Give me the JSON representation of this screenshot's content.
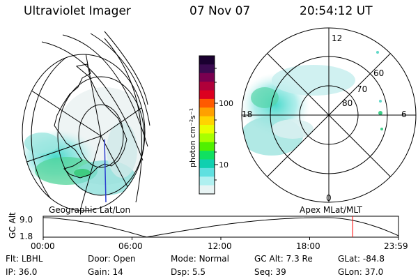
{
  "header": {
    "instrument": "Ultraviolet Imager",
    "date": "07 Nov 07",
    "time": "20:54:12 UT"
  },
  "panels": {
    "geo_caption": "Geographic Lat/Lon",
    "apex_caption": "Apex MLat/MLT"
  },
  "colorbar": {
    "unit_label": "photon cm⁻²s⁻¹",
    "ticks": [
      "100",
      "10"
    ],
    "colors": [
      "#1a0030",
      "#3a0a50",
      "#7a0050",
      "#b0003a",
      "#dc0020",
      "#ff5a00",
      "#ffa000",
      "#ffd400",
      "#e8ff00",
      "#a8ff00",
      "#50f000",
      "#10e060",
      "#10d0b0",
      "#60e0e0",
      "#b0f0f0",
      "#e8f4f4"
    ]
  },
  "polar": {
    "mlt_labels": [
      "12",
      "18",
      "6",
      "0"
    ],
    "mlat_labels": [
      "60",
      "70",
      "80"
    ]
  },
  "timeline": {
    "axis_label": "GC Alt",
    "y_ticks": [
      "9.0",
      "1.8"
    ],
    "x_ticks": [
      "00:00",
      "06:00",
      "12:00",
      "18:00",
      "23:59"
    ],
    "current_time_fraction": 0.8711
  },
  "status": {
    "row1": [
      {
        "key": "Flt:",
        "value": "LBHL"
      },
      {
        "key": "Door:",
        "value": "Open"
      },
      {
        "key": "Mode:",
        "value": "Normal"
      },
      {
        "key": "GC Alt:",
        "value": "7.3 Re"
      },
      {
        "key": "GLat:",
        "value": "-84.8"
      }
    ],
    "row2": [
      {
        "key": "IP:",
        "value": "36.0"
      },
      {
        "key": "Gain:",
        "value": "14"
      },
      {
        "key": "Dsp:",
        "value": "5.5"
      },
      {
        "key": "Seq:",
        "value": "39"
      },
      {
        "key": "GLon:",
        "value": "37.0"
      }
    ]
  }
}
